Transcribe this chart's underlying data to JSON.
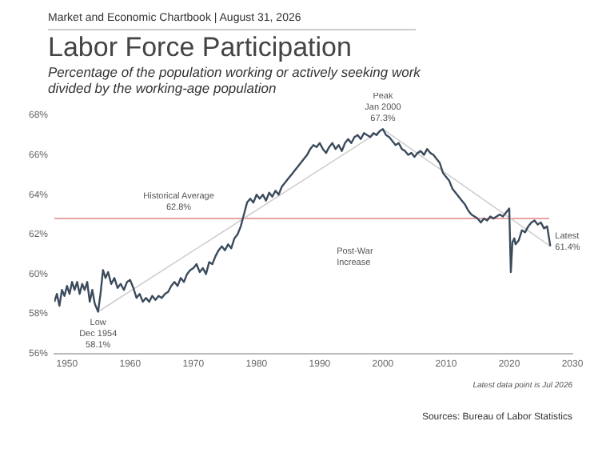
{
  "chart_data": {
    "type": "line",
    "title": "Labor Force Participation",
    "subtitle": "Percentage of the population working or actively seeking work divided by the working-age population",
    "xlim": [
      1948,
      2030
    ],
    "xticks": [
      1950,
      1960,
      1970,
      1980,
      1990,
      2000,
      2010,
      2020,
      2030
    ],
    "ylim": [
      56,
      68
    ],
    "yticks": [
      {
        "value": 56,
        "label": "56%"
      },
      {
        "value": 58,
        "label": "58%"
      },
      {
        "value": 60,
        "label": "60%"
      },
      {
        "value": 62,
        "label": "62%"
      },
      {
        "value": 64,
        "label": "64%"
      },
      {
        "value": 66,
        "label": "66%"
      },
      {
        "value": 68,
        "label": "68%"
      }
    ],
    "grid": false,
    "legend": false,
    "marker": "none",
    "line_style": "solid",
    "series": [
      {
        "color": "#3b4b5c",
        "x": [
          1948.0,
          1948.4,
          1948.8,
          1949.2,
          1949.6,
          1950.0,
          1950.4,
          1950.8,
          1951.2,
          1951.6,
          1952.0,
          1952.4,
          1952.8,
          1953.2,
          1953.6,
          1954.0,
          1954.4,
          1954.92,
          1955.3,
          1955.7,
          1956.1,
          1956.5,
          1957.0,
          1957.5,
          1958.0,
          1958.5,
          1959.0,
          1959.5,
          1960.0,
          1960.5,
          1961.0,
          1961.5,
          1962.0,
          1962.5,
          1963.0,
          1963.5,
          1964.0,
          1964.5,
          1965.0,
          1965.5,
          1966.0,
          1966.5,
          1967.0,
          1967.5,
          1968.0,
          1968.5,
          1969.0,
          1969.5,
          1970.0,
          1970.5,
          1971.0,
          1971.5,
          1972.0,
          1972.5,
          1973.0,
          1973.5,
          1974.0,
          1974.5,
          1975.0,
          1975.5,
          1976.0,
          1976.5,
          1977.0,
          1977.5,
          1978.0,
          1978.5,
          1979.0,
          1979.5,
          1980.0,
          1980.5,
          1981.0,
          1981.5,
          1982.0,
          1982.5,
          1983.0,
          1983.5,
          1984.0,
          1984.5,
          1985.0,
          1985.5,
          1986.0,
          1986.5,
          1987.0,
          1987.5,
          1988.0,
          1988.5,
          1989.0,
          1989.5,
          1990.0,
          1990.5,
          1991.0,
          1991.5,
          1992.0,
          1992.5,
          1993.0,
          1993.5,
          1994.0,
          1994.5,
          1995.0,
          1995.5,
          1996.0,
          1996.5,
          1997.0,
          1997.5,
          1998.0,
          1998.5,
          1999.0,
          1999.5,
          2000.0,
          2000.5,
          2001.0,
          2001.5,
          2002.0,
          2002.5,
          2003.0,
          2003.5,
          2004.0,
          2004.5,
          2005.0,
          2005.5,
          2006.0,
          2006.5,
          2007.0,
          2007.5,
          2008.0,
          2008.5,
          2009.0,
          2009.5,
          2010.0,
          2010.5,
          2011.0,
          2011.5,
          2012.0,
          2012.5,
          2013.0,
          2013.5,
          2014.0,
          2014.5,
          2015.0,
          2015.5,
          2016.0,
          2016.5,
          2017.0,
          2017.5,
          2018.0,
          2018.5,
          2019.0,
          2019.5,
          2020.0,
          2020.25,
          2020.5,
          2020.8,
          2021.0,
          2021.5,
          2022.0,
          2022.5,
          2023.0,
          2023.5,
          2024.0,
          2024.5,
          2025.0,
          2025.5,
          2026.0,
          2026.5
        ],
        "values": [
          58.6,
          59.0,
          58.4,
          59.2,
          58.9,
          59.4,
          59.0,
          59.6,
          59.2,
          59.6,
          59.0,
          59.5,
          59.2,
          59.6,
          58.6,
          59.2,
          58.5,
          58.1,
          59.0,
          60.2,
          59.8,
          60.1,
          59.5,
          59.8,
          59.3,
          59.5,
          59.2,
          59.6,
          59.7,
          59.3,
          58.8,
          59.0,
          58.6,
          58.8,
          58.6,
          58.9,
          58.7,
          58.9,
          58.8,
          59.0,
          59.1,
          59.4,
          59.6,
          59.4,
          59.8,
          59.6,
          60.0,
          60.2,
          60.3,
          60.5,
          60.1,
          60.3,
          60.0,
          60.6,
          60.5,
          60.9,
          61.2,
          61.4,
          61.2,
          61.5,
          61.3,
          61.8,
          62.0,
          62.4,
          63.0,
          63.6,
          63.8,
          63.6,
          64.0,
          63.8,
          64.0,
          63.7,
          64.1,
          63.9,
          64.2,
          64.0,
          64.4,
          64.6,
          64.8,
          65.0,
          65.2,
          65.4,
          65.6,
          65.8,
          66.0,
          66.3,
          66.5,
          66.4,
          66.6,
          66.3,
          66.1,
          66.4,
          66.6,
          66.3,
          66.5,
          66.2,
          66.6,
          66.8,
          66.6,
          66.9,
          67.0,
          66.8,
          67.1,
          67.0,
          66.9,
          67.1,
          67.0,
          67.2,
          67.3,
          67.0,
          66.9,
          66.7,
          66.5,
          66.6,
          66.3,
          66.2,
          66.0,
          66.1,
          65.9,
          66.1,
          66.2,
          66.0,
          66.3,
          66.1,
          66.0,
          65.8,
          65.6,
          65.1,
          64.9,
          64.7,
          64.3,
          64.1,
          63.9,
          63.7,
          63.5,
          63.2,
          63.0,
          62.9,
          62.8,
          62.6,
          62.8,
          62.7,
          62.9,
          62.8,
          62.9,
          63.0,
          62.9,
          63.1,
          63.3,
          60.1,
          61.6,
          61.8,
          61.5,
          61.7,
          62.2,
          62.1,
          62.4,
          62.6,
          62.7,
          62.5,
          62.6,
          62.3,
          62.4,
          61.4
        ]
      },
      {
        "color": "#cfcfcf",
        "x": [
          1954.92,
          2000.0,
          2026.5
        ],
        "values": [
          58.1,
          67.3,
          61.4
        ]
      }
    ],
    "ref_lines": [
      {
        "axis": "y",
        "value": 62.8,
        "label": "Historical Average\n62.8%",
        "color": "#e9a3a3"
      }
    ],
    "annotations": [
      "Market and Economic Chartbook | August 31, 2026",
      {
        "text": "Low\nDec 1954\n58.1%",
        "x": 1954.92,
        "y": 58.1
      },
      {
        "text": "Peak\nJan 2000\n67.3%",
        "x": 2000.0,
        "y": 67.3
      },
      "Post-War\nIncrease",
      {
        "text": "Latest\n61.4%",
        "x": 2026.5,
        "y": 61.4
      },
      "Latest data point is Jul 2026",
      "Sources: Bureau of Labor Statistics"
    ]
  }
}
